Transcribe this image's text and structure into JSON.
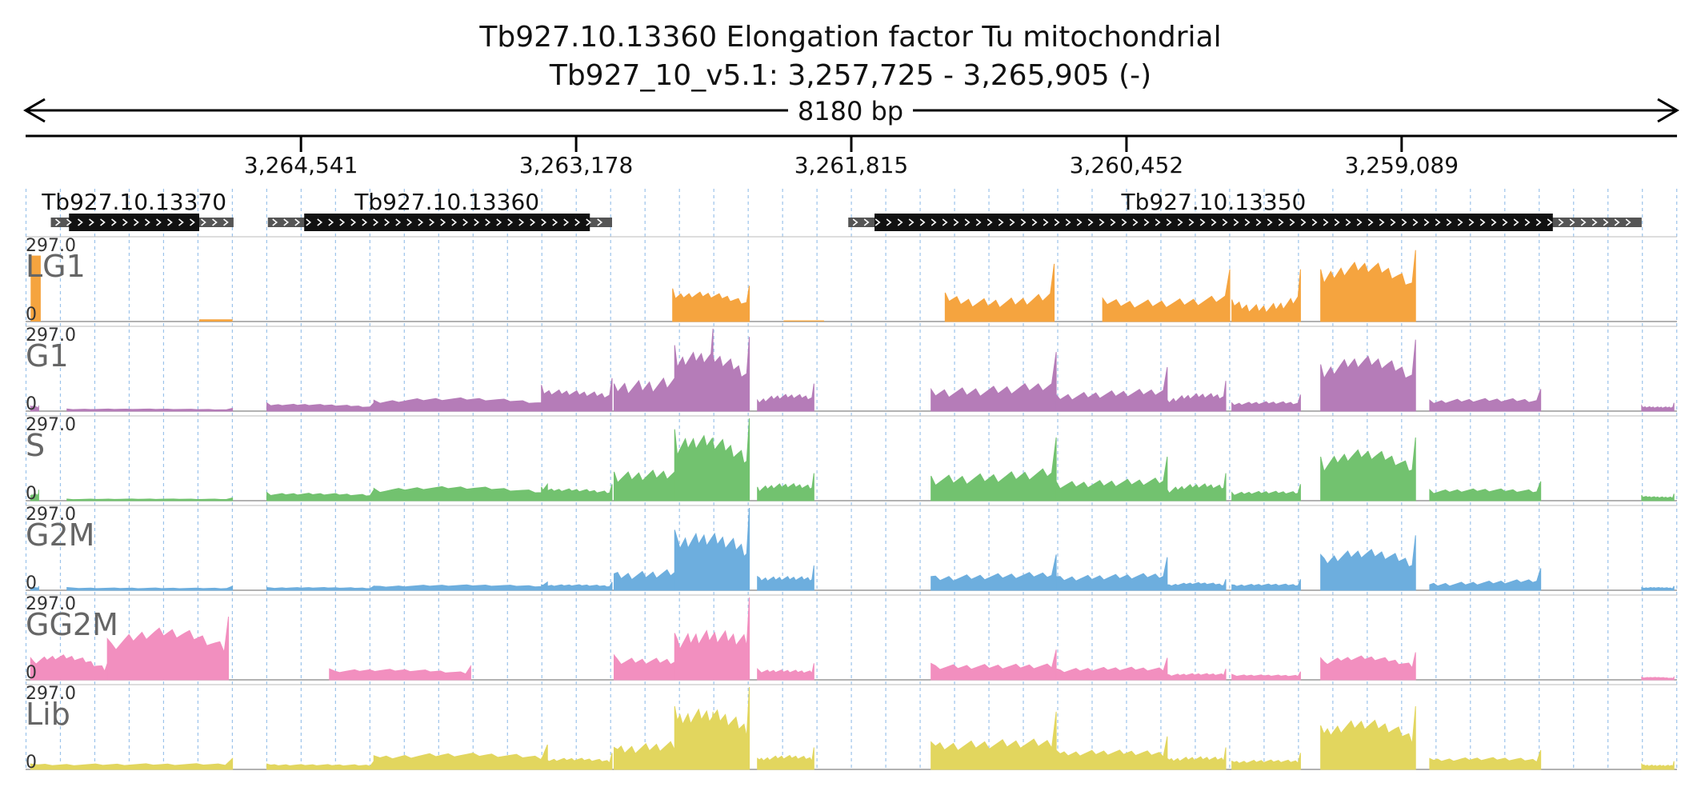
{
  "header": {
    "title": "Tb927.10.13360  Elongation factor Tu  mitochondrial",
    "subtitle": "Tb927_10_v5.1: 3,257,725 - 3,265,905 (-)",
    "span_label": "8180 bp"
  },
  "chart_data": {
    "type": "area",
    "locus": {
      "chromosome": "Tb927_10_v5.1",
      "start": 3257725,
      "end": 3265905,
      "strand": "-",
      "length_bp": 8180
    },
    "ticks": [
      {
        "position": 3264541,
        "label": "3,264,541"
      },
      {
        "position": 3263178,
        "label": "3,263,178"
      },
      {
        "position": 3261815,
        "label": "3,261,815"
      },
      {
        "position": 3260452,
        "label": "3,260,452"
      },
      {
        "position": 3259089,
        "label": "3,259,089"
      }
    ],
    "genes": [
      {
        "name": "Tb927.10.13370",
        "utr_start": 3265780,
        "utr_end": 3264875,
        "cds_start": 3265690,
        "cds_end": 3265045
      },
      {
        "name": "Tb927.10.13360",
        "utr_start": 3264705,
        "utr_end": 3263000,
        "cds_start": 3264525,
        "cds_end": 3263110
      },
      {
        "name": "Tb927.10.13350",
        "utr_start": 3261830,
        "utr_end": 3257900,
        "cds_start": 3261700,
        "cds_end": 3258340
      }
    ],
    "ymax_label": "297.0",
    "ymin_label": "0",
    "ylim": [
      0,
      297
    ],
    "series": [
      {
        "name": "LG1",
        "color": "#f5a43f",
        "segments": [
          [
            3265880,
            3265830,
            240
          ],
          [
            3265045,
            3264880,
            8
          ],
          [
            3262700,
            3262320,
            0
          ],
          [
            3262150,
            3261950,
            4
          ],
          [
            3261400,
            3260800,
            0
          ],
          [
            3260800,
            3260580,
            0
          ],
          [
            3260560,
            3259950,
            0
          ],
          [
            3259950,
            3259590,
            0
          ],
          [
            3259490,
            3259020,
            0
          ]
        ],
        "shapes": [
          [
            3262700,
            3262320,
            120,
            110,
            130
          ],
          [
            3261350,
            3260810,
            105,
            30,
            210
          ],
          [
            3260570,
            3259940,
            85,
            40,
            190
          ],
          [
            3259930,
            3259590,
            80,
            5,
            190
          ],
          [
            3259490,
            3259020,
            190,
            250,
            260
          ]
        ]
      },
      {
        "name": "G1",
        "color": "#b57cb8",
        "segments": [],
        "shapes": [
          [
            3265880,
            3265840,
            20,
            20,
            20
          ],
          [
            3265700,
            3264880,
            8,
            8,
            10
          ],
          [
            3264710,
            3264180,
            30,
            25,
            30
          ],
          [
            3264180,
            3263320,
            40,
            55,
            60
          ],
          [
            3263350,
            3263000,
            95,
            60,
            120
          ],
          [
            3262990,
            3262500,
            100,
            60,
            300
          ],
          [
            3262690,
            3262320,
            240,
            220,
            270
          ],
          [
            3262280,
            3262000,
            40,
            60,
            100
          ],
          [
            3261420,
            3260800,
            80,
            50,
            215
          ],
          [
            3260800,
            3260250,
            60,
            50,
            160
          ],
          [
            3260250,
            3259960,
            40,
            60,
            110
          ],
          [
            3259930,
            3259590,
            30,
            30,
            60
          ],
          [
            3259490,
            3259020,
            170,
            220,
            260
          ],
          [
            3258950,
            3258400,
            40,
            40,
            80
          ],
          [
            3257900,
            3257740,
            20,
            10,
            30
          ]
        ]
      },
      {
        "name": "S",
        "color": "#72c26f",
        "segments": [],
        "shapes": [
          [
            3265880,
            3265840,
            20,
            20,
            40
          ],
          [
            3265700,
            3264880,
            6,
            6,
            10
          ],
          [
            3264710,
            3264180,
            30,
            25,
            40
          ],
          [
            3264180,
            3263320,
            45,
            60,
            60
          ],
          [
            3263350,
            3263000,
            50,
            40,
            60
          ],
          [
            3262990,
            3262500,
            105,
            80,
            230
          ],
          [
            3262690,
            3262320,
            260,
            240,
            300
          ],
          [
            3262280,
            3262000,
            50,
            60,
            100
          ],
          [
            3261420,
            3260800,
            90,
            60,
            230
          ],
          [
            3260800,
            3260250,
            70,
            50,
            160
          ],
          [
            3260250,
            3259960,
            40,
            60,
            100
          ],
          [
            3259930,
            3259590,
            30,
            30,
            60
          ],
          [
            3259490,
            3259020,
            160,
            210,
            230
          ],
          [
            3258950,
            3258400,
            40,
            40,
            70
          ],
          [
            3257900,
            3257740,
            20,
            10,
            25
          ]
        ]
      },
      {
        "name": "G2M",
        "color": "#6daede",
        "segments": [],
        "shapes": [
          [
            3265880,
            3265840,
            10,
            10,
            15
          ],
          [
            3265700,
            3264880,
            10,
            6,
            15
          ],
          [
            3264710,
            3264180,
            10,
            10,
            15
          ],
          [
            3264180,
            3263320,
            15,
            20,
            30
          ],
          [
            3263350,
            3263000,
            20,
            20,
            30
          ],
          [
            3262990,
            3262500,
            60,
            40,
            180
          ],
          [
            3262690,
            3262320,
            220,
            200,
            300
          ],
          [
            3262280,
            3262000,
            50,
            40,
            90
          ],
          [
            3261420,
            3260800,
            50,
            40,
            130
          ],
          [
            3260800,
            3260250,
            50,
            40,
            120
          ],
          [
            3260250,
            3259960,
            20,
            30,
            40
          ],
          [
            3259930,
            3259590,
            20,
            20,
            40
          ],
          [
            3259490,
            3259020,
            130,
            160,
            200
          ],
          [
            3258950,
            3258400,
            20,
            20,
            80
          ],
          [
            3257900,
            3257740,
            10,
            10,
            15
          ]
        ]
      },
      {
        "name": "GG2M",
        "color": "#f28fbf",
        "segments": [],
        "shapes": [
          [
            3265880,
            3265500,
            80,
            110,
            60
          ],
          [
            3265500,
            3264900,
            150,
            220,
            230
          ],
          [
            3264400,
            3263700,
            40,
            40,
            50
          ],
          [
            3262990,
            3262500,
            90,
            60,
            140
          ],
          [
            3262690,
            3262320,
            170,
            160,
            300
          ],
          [
            3262280,
            3262000,
            40,
            30,
            60
          ],
          [
            3261420,
            3260800,
            60,
            40,
            110
          ],
          [
            3260800,
            3260250,
            40,
            40,
            80
          ],
          [
            3260250,
            3259960,
            20,
            20,
            40
          ],
          [
            3259930,
            3259590,
            20,
            15,
            30
          ],
          [
            3259490,
            3259020,
            80,
            100,
            100
          ],
          [
            3257900,
            3257740,
            10,
            10,
            10
          ]
        ]
      },
      {
        "name": "Lib",
        "color": "#e2d65e",
        "segments": [],
        "shapes": [
          [
            3265880,
            3264880,
            20,
            15,
            40
          ],
          [
            3264710,
            3264180,
            20,
            15,
            30
          ],
          [
            3264180,
            3263320,
            50,
            60,
            90
          ],
          [
            3263350,
            3263000,
            40,
            40,
            60
          ],
          [
            3262990,
            3262500,
            80,
            70,
            210
          ],
          [
            3262690,
            3262320,
            230,
            220,
            300
          ],
          [
            3262280,
            3262000,
            40,
            50,
            80
          ],
          [
            3261420,
            3260800,
            100,
            80,
            210
          ],
          [
            3260800,
            3260250,
            70,
            60,
            120
          ],
          [
            3260250,
            3259960,
            40,
            40,
            80
          ],
          [
            3259930,
            3259590,
            30,
            30,
            60
          ],
          [
            3259490,
            3259020,
            160,
            200,
            230
          ],
          [
            3258950,
            3258400,
            40,
            40,
            70
          ],
          [
            3257900,
            3257740,
            20,
            10,
            30
          ]
        ]
      }
    ]
  }
}
